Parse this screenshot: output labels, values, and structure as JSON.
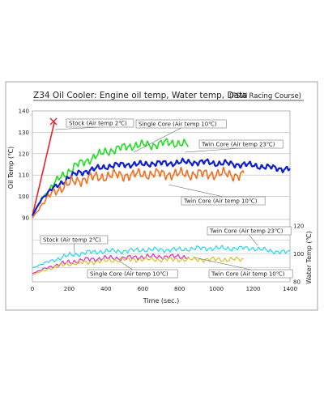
{
  "chart_data": {
    "type": "line",
    "title": "Z34 Oil Cooler: Engine oil temp, Water temp, Data",
    "subtitle": "(FSW Racing Course)",
    "xlabel": "Time (sec.)",
    "ylabel_left": "Oil Temp (℃)",
    "ylabel_right": "Water Temp (℃)",
    "xlim": [
      0,
      1400
    ],
    "ylim_left": [
      80,
      140
    ],
    "ylim_right": [
      80,
      120
    ],
    "x_ticks": [
      "0",
      "200",
      "400",
      "600",
      "800",
      "1000",
      "1200",
      "1400"
    ],
    "y_ticks_left": [
      "90",
      "100",
      "110",
      "120",
      "130",
      "140"
    ],
    "y_ticks_right": [
      "80",
      "100",
      "120"
    ],
    "grid": true,
    "legend": "none",
    "colors": {
      "stock": "#e8232b",
      "single": "#22dd22",
      "twin23": "#1020d0",
      "twin10": "#f07020",
      "water_twin23": "#22d8e8",
      "water_single": "#e020d0",
      "water_twin10": "#d8c030"
    },
    "series": [
      {
        "name": "Stock (Air temp 2℃)",
        "panel": "oil",
        "x": [
          0,
          20,
          40,
          60,
          80,
          100,
          120
        ],
        "y": [
          91,
          97,
          104,
          112,
          120,
          128,
          135
        ]
      },
      {
        "name": "Single Core (Air temp 10℃)",
        "panel": "oil",
        "x": [
          0,
          50,
          100,
          150,
          200,
          250,
          300,
          350,
          400,
          450,
          500,
          550,
          600,
          650,
          700,
          750,
          800,
          850
        ],
        "y": [
          91,
          99,
          104,
          109,
          112,
          115,
          117,
          119,
          121,
          122,
          123,
          124,
          124,
          124,
          125,
          125,
          125,
          124
        ]
      },
      {
        "name": "Twin Core (Air temp 23℃)",
        "panel": "oil",
        "x": [
          0,
          50,
          100,
          150,
          200,
          250,
          300,
          350,
          400,
          450,
          500,
          550,
          600,
          650,
          700,
          750,
          800,
          850,
          900,
          950,
          1000,
          1050,
          1100,
          1150,
          1200,
          1250,
          1300,
          1350,
          1400
        ],
        "y": [
          91,
          99,
          103,
          106,
          109,
          111,
          112,
          113,
          114,
          114.5,
          115,
          115,
          115,
          115.5,
          115.5,
          115.5,
          116,
          116,
          116,
          116,
          115.5,
          115.5,
          115,
          115,
          114.5,
          114,
          113.5,
          113,
          113
        ]
      },
      {
        "name": "Twin Core (Air temp 10℃)",
        "panel": "oil",
        "x": [
          0,
          50,
          100,
          150,
          200,
          250,
          300,
          350,
          400,
          450,
          500,
          550,
          600,
          650,
          700,
          750,
          800,
          850,
          900,
          950,
          1000,
          1050,
          1100,
          1150
        ],
        "y": [
          90,
          96,
          101,
          104,
          106,
          107.5,
          108.5,
          109,
          109.5,
          110,
          110,
          110,
          110.5,
          110.5,
          110.5,
          110.5,
          110.5,
          110.5,
          110.5,
          110.5,
          110.5,
          110.5,
          110,
          110
        ]
      },
      {
        "name": "Twin Core (Air temp 23℃)",
        "panel": "water",
        "x": [
          0,
          100,
          200,
          300,
          400,
          500,
          600,
          700,
          800,
          900,
          1000,
          1100,
          1200,
          1300,
          1400
        ],
        "y": [
          90,
          95,
          99,
          101,
          102,
          102,
          103,
          103,
          103,
          104,
          104,
          104,
          104,
          102,
          101
        ]
      },
      {
        "name": "Single Core (Air temp 10℃)",
        "panel": "water",
        "x": [
          0,
          100,
          200,
          300,
          400,
          500,
          600,
          700,
          800,
          850
        ],
        "y": [
          86,
          91,
          94,
          96,
          97,
          97,
          98,
          98,
          98,
          98
        ]
      },
      {
        "name": "Twin Core (Air temp 10℃)",
        "panel": "water",
        "x": [
          0,
          100,
          200,
          300,
          400,
          500,
          600,
          700,
          800,
          900,
          1000,
          1100,
          1150
        ],
        "y": [
          85,
          90,
          93,
          94,
          95,
          96,
          96,
          96,
          96,
          96,
          96,
          96,
          96
        ]
      }
    ],
    "annotations": [
      {
        "text": "Stock (Air temp 2℃)",
        "panel": "oil"
      },
      {
        "text": "Single Core (Air temp 10℃)",
        "panel": "oil"
      },
      {
        "text": "Twin Core (Air temp 23℃)",
        "panel": "oil"
      },
      {
        "text": "Twin Core (Air temp 10℃)",
        "panel": "oil"
      },
      {
        "text": "Stock (Air temp 2℃)",
        "panel": "water"
      },
      {
        "text": "Twin Core (Air temp 23℃)",
        "panel": "water"
      },
      {
        "text": "Single Core (Air temp 10℃)",
        "panel": "water"
      },
      {
        "text": "Twin Core (Air temp 10℃)",
        "panel": "water"
      }
    ]
  }
}
